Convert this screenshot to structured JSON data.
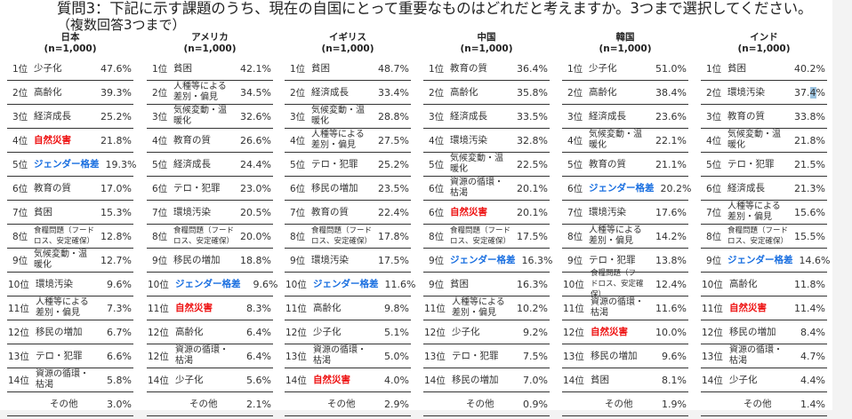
{
  "title": "質問3：下記に示す課題のうち、現在の自国にとって重要なものはどれだと考えますか。3つまで選択してください。",
  "subtitle": "（複数回答3つまで）",
  "colors": {
    "disaster": "#ee1111",
    "gender": "#1a6fe0",
    "rule": "#333333"
  },
  "countries": [
    {
      "name": "日本",
      "n": "(n=1,000)",
      "rows": [
        {
          "rank": "1位",
          "item": "少子化",
          "pct": "47.6%",
          "style": ""
        },
        {
          "rank": "2位",
          "item": "高齢化",
          "pct": "39.3%",
          "style": ""
        },
        {
          "rank": "3位",
          "item": "経済成長",
          "pct": "25.2%",
          "style": ""
        },
        {
          "rank": "4位",
          "item": "自然災害",
          "pct": "21.8%",
          "style": "red"
        },
        {
          "rank": "5位",
          "item": "ジェンダー格差",
          "pct": "19.3%",
          "style": "blue"
        },
        {
          "rank": "6位",
          "item": "教育の質",
          "pct": "17.0%",
          "style": ""
        },
        {
          "rank": "7位",
          "item": "貧困",
          "pct": "15.3%",
          "style": ""
        },
        {
          "rank": "8位",
          "item": "食糧問題（フードロス、安定確保）",
          "pct": "12.8%",
          "style": "tiny"
        },
        {
          "rank": "9位",
          "item": "気候変動・温暖化",
          "pct": "12.7%",
          "style": "small"
        },
        {
          "rank": "10位",
          "item": "環境汚染",
          "pct": "9.6%",
          "style": ""
        },
        {
          "rank": "11位",
          "item": "人種等による差別・偏見",
          "pct": "7.3%",
          "style": "small"
        },
        {
          "rank": "12位",
          "item": "移民の増加",
          "pct": "6.7%",
          "style": ""
        },
        {
          "rank": "13位",
          "item": "テロ・犯罪",
          "pct": "6.6%",
          "style": ""
        },
        {
          "rank": "14位",
          "item": "資源の循環・枯渇",
          "pct": "5.8%",
          "style": "small"
        },
        {
          "rank": "",
          "item": "その他",
          "pct": "3.0%",
          "style": "other"
        }
      ]
    },
    {
      "name": "アメリカ",
      "n": "(n=1,000)",
      "rows": [
        {
          "rank": "1位",
          "item": "貧困",
          "pct": "42.1%",
          "style": ""
        },
        {
          "rank": "2位",
          "item": "人種等による差別・偏見",
          "pct": "34.5%",
          "style": "small"
        },
        {
          "rank": "3位",
          "item": "気候変動・温暖化",
          "pct": "32.6%",
          "style": "small"
        },
        {
          "rank": "4位",
          "item": "教育の質",
          "pct": "26.6%",
          "style": ""
        },
        {
          "rank": "5位",
          "item": "経済成長",
          "pct": "24.4%",
          "style": ""
        },
        {
          "rank": "6位",
          "item": "テロ・犯罪",
          "pct": "23.0%",
          "style": ""
        },
        {
          "rank": "7位",
          "item": "環境汚染",
          "pct": "20.5%",
          "style": ""
        },
        {
          "rank": "8位",
          "item": "食糧問題（フードロス、安定確保）",
          "pct": "20.0%",
          "style": "tiny"
        },
        {
          "rank": "9位",
          "item": "移民の増加",
          "pct": "18.8%",
          "style": ""
        },
        {
          "rank": "10位",
          "item": "ジェンダー格差",
          "pct": "9.6%",
          "style": "blue"
        },
        {
          "rank": "11位",
          "item": "自然災害",
          "pct": "8.3%",
          "style": "red"
        },
        {
          "rank": "12位",
          "item": "高齢化",
          "pct": "6.4%",
          "style": ""
        },
        {
          "rank": "12位",
          "item": "資源の循環・枯渇",
          "pct": "6.4%",
          "style": "small"
        },
        {
          "rank": "14位",
          "item": "少子化",
          "pct": "5.6%",
          "style": ""
        },
        {
          "rank": "",
          "item": "その他",
          "pct": "2.1%",
          "style": "other"
        }
      ]
    },
    {
      "name": "イギリス",
      "n": "(n=1,000)",
      "rows": [
        {
          "rank": "1位",
          "item": "貧困",
          "pct": "48.7%",
          "style": ""
        },
        {
          "rank": "2位",
          "item": "経済成長",
          "pct": "33.4%",
          "style": ""
        },
        {
          "rank": "3位",
          "item": "気候変動・温暖化",
          "pct": "28.8%",
          "style": "small"
        },
        {
          "rank": "4位",
          "item": "人種等による差別・偏見",
          "pct": "27.5%",
          "style": "small"
        },
        {
          "rank": "5位",
          "item": "テロ・犯罪",
          "pct": "25.2%",
          "style": ""
        },
        {
          "rank": "6位",
          "item": "移民の増加",
          "pct": "23.5%",
          "style": ""
        },
        {
          "rank": "7位",
          "item": "教育の質",
          "pct": "22.4%",
          "style": ""
        },
        {
          "rank": "8位",
          "item": "食糧問題（フードロス、安定確保）",
          "pct": "17.8%",
          "style": "tiny"
        },
        {
          "rank": "9位",
          "item": "環境汚染",
          "pct": "17.5%",
          "style": ""
        },
        {
          "rank": "10位",
          "item": "ジェンダー格差",
          "pct": "11.6%",
          "style": "blue"
        },
        {
          "rank": "11位",
          "item": "高齢化",
          "pct": "9.8%",
          "style": ""
        },
        {
          "rank": "12位",
          "item": "少子化",
          "pct": "5.1%",
          "style": ""
        },
        {
          "rank": "13位",
          "item": "資源の循環・枯渇",
          "pct": "5.0%",
          "style": "small"
        },
        {
          "rank": "14位",
          "item": "自然災害",
          "pct": "4.0%",
          "style": "red"
        },
        {
          "rank": "",
          "item": "その他",
          "pct": "2.9%",
          "style": "other"
        }
      ]
    },
    {
      "name": "中国",
      "n": "(n=1,000)",
      "rows": [
        {
          "rank": "1位",
          "item": "教育の質",
          "pct": "36.4%",
          "style": ""
        },
        {
          "rank": "2位",
          "item": "高齢化",
          "pct": "35.8%",
          "style": ""
        },
        {
          "rank": "3位",
          "item": "経済成長",
          "pct": "33.5%",
          "style": ""
        },
        {
          "rank": "4位",
          "item": "環境汚染",
          "pct": "32.8%",
          "style": ""
        },
        {
          "rank": "5位",
          "item": "気候変動・温暖化",
          "pct": "22.5%",
          "style": "small"
        },
        {
          "rank": "6位",
          "item": "資源の循環・枯渇",
          "pct": "20.1%",
          "style": "small"
        },
        {
          "rank": "6位",
          "item": "自然災害",
          "pct": "20.1%",
          "style": "red"
        },
        {
          "rank": "8位",
          "item": "食糧問題（フードロス、安定確保）",
          "pct": "17.5%",
          "style": "tiny"
        },
        {
          "rank": "9位",
          "item": "ジェンダー格差",
          "pct": "16.3%",
          "style": "blue"
        },
        {
          "rank": "9位",
          "item": "貧困",
          "pct": "16.3%",
          "style": ""
        },
        {
          "rank": "11位",
          "item": "人種等による差別・偏見",
          "pct": "10.2%",
          "style": "small"
        },
        {
          "rank": "12位",
          "item": "少子化",
          "pct": "9.2%",
          "style": ""
        },
        {
          "rank": "13位",
          "item": "テロ・犯罪",
          "pct": "7.5%",
          "style": ""
        },
        {
          "rank": "14位",
          "item": "移民の増加",
          "pct": "7.0%",
          "style": ""
        },
        {
          "rank": "",
          "item": "その他",
          "pct": "0.9%",
          "style": "other"
        }
      ]
    },
    {
      "name": "韓国",
      "n": "(n=1,000)",
      "rows": [
        {
          "rank": "1位",
          "item": "少子化",
          "pct": "51.0%",
          "style": ""
        },
        {
          "rank": "2位",
          "item": "高齢化",
          "pct": "38.4%",
          "style": ""
        },
        {
          "rank": "3位",
          "item": "経済成長",
          "pct": "23.6%",
          "style": ""
        },
        {
          "rank": "4位",
          "item": "気候変動・温暖化",
          "pct": "22.1%",
          "style": "small"
        },
        {
          "rank": "5位",
          "item": "教育の質",
          "pct": "21.1%",
          "style": ""
        },
        {
          "rank": "6位",
          "item": "ジェンダー格差",
          "pct": "20.2%",
          "style": "blue"
        },
        {
          "rank": "7位",
          "item": "環境汚染",
          "pct": "17.6%",
          "style": ""
        },
        {
          "rank": "8位",
          "item": "人種等による差別・偏見",
          "pct": "14.2%",
          "style": "small"
        },
        {
          "rank": "9位",
          "item": "テロ・犯罪",
          "pct": "13.8%",
          "style": ""
        },
        {
          "rank": "10位",
          "item": "食糧問題（フードロス、安定確保）",
          "pct": "12.4%",
          "style": "tiny"
        },
        {
          "rank": "11位",
          "item": "資源の循環・枯渇",
          "pct": "11.6%",
          "style": "small"
        },
        {
          "rank": "12位",
          "item": "自然災害",
          "pct": "10.0%",
          "style": "red"
        },
        {
          "rank": "13位",
          "item": "移民の増加",
          "pct": "9.6%",
          "style": ""
        },
        {
          "rank": "14位",
          "item": "貧困",
          "pct": "8.1%",
          "style": ""
        },
        {
          "rank": "",
          "item": "その他",
          "pct": "1.9%",
          "style": "other"
        }
      ]
    },
    {
      "name": "インド",
      "n": "(n=1,000)",
      "rows": [
        {
          "rank": "1位",
          "item": "貧困",
          "pct": "40.2%",
          "style": ""
        },
        {
          "rank": "2位",
          "item": "環境汚染",
          "pct": "37.4%",
          "style": "",
          "highlight": true
        },
        {
          "rank": "3位",
          "item": "教育の質",
          "pct": "33.8%",
          "style": ""
        },
        {
          "rank": "4位",
          "item": "気候変動・温暖化",
          "pct": "21.8%",
          "style": "small"
        },
        {
          "rank": "5位",
          "item": "テロ・犯罪",
          "pct": "21.5%",
          "style": ""
        },
        {
          "rank": "6位",
          "item": "経済成長",
          "pct": "21.3%",
          "style": ""
        },
        {
          "rank": "7位",
          "item": "人種等による差別・偏見",
          "pct": "15.6%",
          "style": "small"
        },
        {
          "rank": "8位",
          "item": "食糧問題（フードロス、安定確保）",
          "pct": "15.5%",
          "style": "tiny"
        },
        {
          "rank": "9位",
          "item": "ジェンダー格差",
          "pct": "14.6%",
          "style": "blue"
        },
        {
          "rank": "10位",
          "item": "高齢化",
          "pct": "11.8%",
          "style": ""
        },
        {
          "rank": "11位",
          "item": "自然災害",
          "pct": "11.4%",
          "style": "red"
        },
        {
          "rank": "12位",
          "item": "移民の増加",
          "pct": "8.4%",
          "style": ""
        },
        {
          "rank": "13位",
          "item": "資源の循環・枯渇",
          "pct": "4.7%",
          "style": "small"
        },
        {
          "rank": "14位",
          "item": "少子化",
          "pct": "4.4%",
          "style": ""
        },
        {
          "rank": "",
          "item": "その他",
          "pct": "1.4%",
          "style": "other"
        }
      ]
    }
  ]
}
